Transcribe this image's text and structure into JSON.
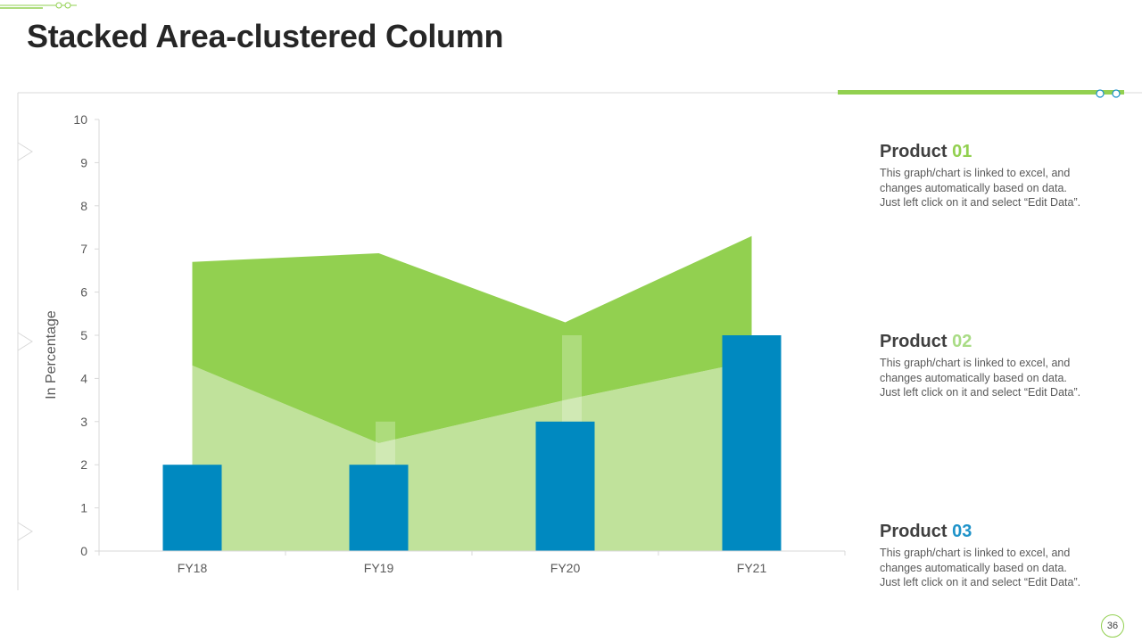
{
  "slide": {
    "title": "Stacked Area-clustered Column",
    "page_number": "36"
  },
  "colors": {
    "accent_green": "#92d050",
    "light_green": "#c0e29b",
    "column_blue": "#0089c0",
    "product_01_number": "#92d050",
    "product_02_number": "#a9dc85",
    "product_03_number": "#1f93c9"
  },
  "products": [
    {
      "name": "Product",
      "number": "01",
      "description_lines": [
        "This graph/chart is linked to excel,  and",
        "changes automatically based on data.",
        "Just left click on it and select “Edit Data”."
      ]
    },
    {
      "name": "Product",
      "number": "02",
      "description_lines": [
        "This graph/chart is linked to excel,  and",
        "changes automatically based on data.",
        "Just left click on it and select “Edit Data”."
      ]
    },
    {
      "name": "Product",
      "number": "03",
      "description_lines": [
        "This graph/chart is linked to excel,  and",
        "changes automatically based on data.",
        "Just left click on it and select “Edit Data”."
      ]
    }
  ],
  "chart_data": {
    "type": "bar",
    "title": "",
    "xlabel": "",
    "ylabel": "In Percentage",
    "categories": [
      "FY18",
      "FY19",
      "FY20",
      "FY21"
    ],
    "ylim": [
      0,
      10
    ],
    "yticks": [
      0,
      1,
      2,
      3,
      4,
      5,
      6,
      7,
      8,
      9,
      10
    ],
    "grid": false,
    "legend": "none",
    "area_series": [
      {
        "values": [
          4.3,
          2.5,
          3.5,
          4.4
        ],
        "color": "#c0e29b"
      },
      {
        "values": [
          2.4,
          4.4,
          1.8,
          2.9
        ],
        "color": "#92d050"
      }
    ],
    "column_series": [
      {
        "values": [
          2,
          2,
          3,
          5
        ],
        "color": "#0089c0"
      }
    ],
    "faint_column_values": [
      2,
      3,
      5
    ]
  }
}
